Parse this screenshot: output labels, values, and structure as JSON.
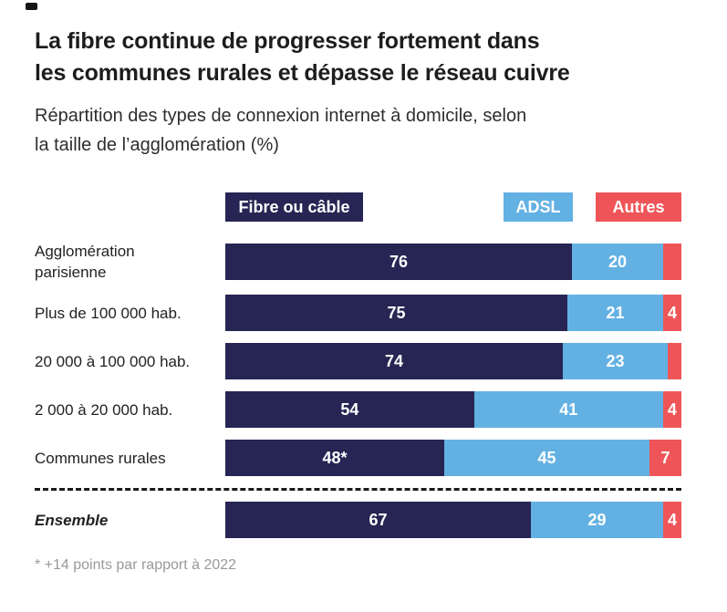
{
  "header": {
    "title_line1": "La fibre continue de progresser fortement dans",
    "title_line2": "les communes rurales et dépasse le réseau cuivre",
    "subtitle_line1": "Répartition des types de connexion internet à domicile, selon",
    "subtitle_line2": "la taille de l’agglomération (%)"
  },
  "legend": [
    {
      "label": "Fibre ou câble",
      "color": "#262553"
    },
    {
      "label": "ADSL",
      "color": "#63b1e3"
    },
    {
      "label": "Autres",
      "color": "#ef5558"
    }
  ],
  "chart_data": {
    "type": "bar",
    "orientation": "horizontal",
    "stacked": true,
    "unit": "%",
    "xlim": [
      0,
      100
    ],
    "series_names": [
      "Fibre ou câble",
      "ADSL",
      "Autres"
    ],
    "series_colors": [
      "#262553",
      "#63b1e3",
      "#ef5558"
    ],
    "rows": [
      {
        "category": "Agglomération\nparisienne",
        "values": [
          76,
          20,
          4
        ],
        "labels": [
          "76",
          "20",
          ""
        ],
        "italic": false,
        "separator_before": false
      },
      {
        "category": "Plus de 100 000 hab.",
        "values": [
          75,
          21,
          4
        ],
        "labels": [
          "75",
          "21",
          "4"
        ],
        "italic": false,
        "separator_before": false
      },
      {
        "category": "20 000 à 100 000 hab.",
        "values": [
          74,
          23,
          3
        ],
        "labels": [
          "74",
          "23",
          ""
        ],
        "italic": false,
        "separator_before": false
      },
      {
        "category": "2 000 à 20 000 hab.",
        "values": [
          54,
          41,
          4
        ],
        "labels": [
          "54",
          "41",
          "4"
        ],
        "italic": false,
        "separator_before": false
      },
      {
        "category": "Communes rurales",
        "values": [
          48,
          45,
          7
        ],
        "labels": [
          "48*",
          "45",
          "7"
        ],
        "italic": false,
        "separator_before": false
      },
      {
        "category": "Ensemble",
        "values": [
          67,
          29,
          4
        ],
        "labels": [
          "67",
          "29",
          "4"
        ],
        "italic": true,
        "separator_before": true
      }
    ]
  },
  "footnote": "* +14 points par rapport à 2022"
}
